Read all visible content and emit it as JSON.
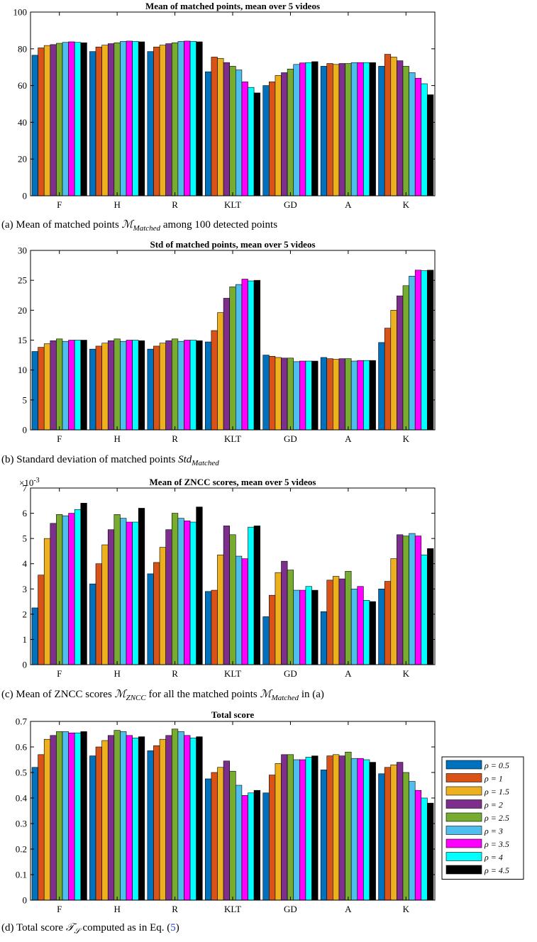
{
  "series_colors": [
    "#0072BD",
    "#D95319",
    "#EDB120",
    "#7E2F8E",
    "#77AC30",
    "#4DBEEE",
    "#FF00FF",
    "#00FFFF",
    "#000000"
  ],
  "chart_data": [
    {
      "type": "bar",
      "title": "Mean of matched points, mean over 5 videos",
      "categories": [
        "F",
        "H",
        "R",
        "KLT",
        "GD",
        "A",
        "K"
      ],
      "ylim": [
        0,
        100
      ],
      "yticks": [
        "0",
        "20",
        "40",
        "60",
        "80",
        "100"
      ],
      "grid": false,
      "caption": {
        "prefix": "(a) Mean of matched points ",
        "sym": "ℳ",
        "sub": "Matched",
        "suffix": " among 100 detected points"
      },
      "series": [
        {
          "values": [
            76.5,
            78.5,
            78.5,
            67.5,
            60,
            70.5,
            70.5
          ]
        },
        {
          "values": [
            80.5,
            81,
            81,
            75.5,
            62,
            72,
            77
          ]
        },
        {
          "values": [
            81.8,
            82,
            82,
            74.8,
            65.5,
            71.5,
            75.5
          ]
        },
        {
          "values": [
            82.3,
            82.8,
            82.8,
            72.5,
            67,
            72,
            73.5
          ]
        },
        {
          "values": [
            83,
            83.3,
            83.3,
            70.5,
            69,
            72,
            70.5
          ]
        },
        {
          "values": [
            83.5,
            84,
            84,
            68.5,
            71.5,
            72.5,
            67
          ]
        },
        {
          "values": [
            83.8,
            84.2,
            84.2,
            62,
            72.3,
            72.5,
            64
          ]
        },
        {
          "values": [
            83.5,
            84,
            84,
            59,
            72.5,
            72.5,
            61
          ]
        },
        {
          "values": [
            83.3,
            83.8,
            83.8,
            56,
            73,
            72.5,
            55
          ]
        }
      ]
    },
    {
      "type": "bar",
      "title": "Std of matched points, mean over 5 videos",
      "categories": [
        "F",
        "H",
        "R",
        "KLT",
        "GD",
        "A",
        "K"
      ],
      "ylim": [
        0,
        30
      ],
      "yticks": [
        "0",
        "5",
        "10",
        "15",
        "20",
        "25",
        "30"
      ],
      "grid": false,
      "caption": {
        "prefix": "(b) Standard deviation of matched points ",
        "sym": "Std",
        "sub": "Matched",
        "suffix": ""
      },
      "series": [
        {
          "values": [
            13.1,
            13.5,
            13.5,
            14.7,
            12.5,
            12.1,
            14.6
          ]
        },
        {
          "values": [
            13.8,
            14,
            14,
            16.6,
            12.3,
            11.9,
            17
          ]
        },
        {
          "values": [
            14.4,
            14.5,
            14.5,
            19.6,
            12.1,
            11.8,
            20
          ]
        },
        {
          "values": [
            14.9,
            14.9,
            14.9,
            22,
            12,
            11.9,
            22.4
          ]
        },
        {
          "values": [
            15.2,
            15.2,
            15.2,
            23.9,
            12,
            11.9,
            24.1
          ]
        },
        {
          "values": [
            14.8,
            14.8,
            14.8,
            24.3,
            11.4,
            11.5,
            25.7
          ]
        },
        {
          "values": [
            15,
            15,
            15,
            25.2,
            11.5,
            11.6,
            26.7
          ]
        },
        {
          "values": [
            15,
            15,
            15,
            24.9,
            11.5,
            11.6,
            26.6
          ]
        },
        {
          "values": [
            15,
            14.9,
            14.9,
            25,
            11.5,
            11.6,
            26.7
          ]
        }
      ]
    },
    {
      "type": "bar",
      "title": "Mean of ZNCC scores, mean over 5 videos",
      "categories": [
        "F",
        "H",
        "R",
        "KLT",
        "GD",
        "A",
        "K"
      ],
      "ylim": [
        0,
        7
      ],
      "yticks": [
        "0",
        "1",
        "2",
        "3",
        "4",
        "5",
        "6",
        "7"
      ],
      "exponent": {
        "base": "×10",
        "power": "-3"
      },
      "grid": false,
      "caption": {
        "prefix": "(c) Mean of ZNCC scores ",
        "sym": "ℳ",
        "sub": "ZNCC",
        "mid": " for all the matched points ",
        "sym2": "ℳ",
        "sub2": "Matched",
        "suffix": " in (a)"
      },
      "series": [
        {
          "values": [
            2.25,
            3.2,
            3.6,
            2.9,
            1.9,
            2.1,
            3
          ]
        },
        {
          "values": [
            3.55,
            4,
            4.05,
            2.95,
            2.75,
            3.35,
            3.3
          ]
        },
        {
          "values": [
            5,
            4.75,
            4.65,
            4.35,
            3.65,
            3.5,
            4.2
          ]
        },
        {
          "values": [
            5.6,
            5.35,
            5.35,
            5.5,
            4.1,
            3.4,
            5.15
          ]
        },
        {
          "values": [
            5.95,
            5.95,
            6,
            5.15,
            3.75,
            3.7,
            5.1
          ]
        },
        {
          "values": [
            5.9,
            5.8,
            5.8,
            4.3,
            2.95,
            3,
            5.2
          ]
        },
        {
          "values": [
            6,
            5.65,
            5.7,
            4.2,
            2.95,
            3.1,
            5.1
          ]
        },
        {
          "values": [
            6.15,
            5.65,
            5.65,
            5.45,
            3.1,
            2.55,
            4.35
          ]
        },
        {
          "values": [
            6.4,
            6.2,
            6.25,
            5.5,
            2.95,
            2.5,
            4.6
          ]
        }
      ]
    },
    {
      "type": "bar",
      "title": "Total score",
      "categories": [
        "F",
        "H",
        "R",
        "KLT",
        "GD",
        "A",
        "K"
      ],
      "ylim": [
        0,
        0.7
      ],
      "yticks": [
        "0",
        "0.1",
        "0.2",
        "0.3",
        "0.4",
        "0.5",
        "0.6",
        "0.7"
      ],
      "grid": false,
      "legend": {
        "placement": "right",
        "entries": [
          "ρ = 0.5",
          "ρ = 1",
          "ρ = 1.5",
          "ρ = 2",
          "ρ = 2.5",
          "ρ = 3",
          "ρ = 3.5",
          "ρ = 4",
          "ρ = 4.5"
        ]
      },
      "caption": {
        "prefix": "(d) Total score ",
        "sym": "𝒯",
        "sub": "𝒮",
        "mid": " computed as in Eq. (",
        "ref": "5",
        "suffix": ")"
      },
      "series": [
        {
          "values": [
            0.52,
            0.565,
            0.585,
            0.475,
            0.42,
            0.51,
            0.495
          ]
        },
        {
          "values": [
            0.57,
            0.6,
            0.605,
            0.5,
            0.49,
            0.565,
            0.52
          ]
        },
        {
          "values": [
            0.63,
            0.625,
            0.63,
            0.52,
            0.535,
            0.57,
            0.53
          ]
        },
        {
          "values": [
            0.645,
            0.645,
            0.645,
            0.545,
            0.57,
            0.565,
            0.54
          ]
        },
        {
          "values": [
            0.66,
            0.665,
            0.67,
            0.505,
            0.57,
            0.58,
            0.5
          ]
        },
        {
          "values": [
            0.66,
            0.66,
            0.66,
            0.45,
            0.55,
            0.555,
            0.465
          ]
        },
        {
          "values": [
            0.655,
            0.645,
            0.645,
            0.41,
            0.55,
            0.555,
            0.43
          ]
        },
        {
          "values": [
            0.655,
            0.635,
            0.635,
            0.42,
            0.56,
            0.55,
            0.4
          ]
        },
        {
          "values": [
            0.66,
            0.64,
            0.64,
            0.43,
            0.565,
            0.54,
            0.38
          ]
        }
      ]
    }
  ]
}
